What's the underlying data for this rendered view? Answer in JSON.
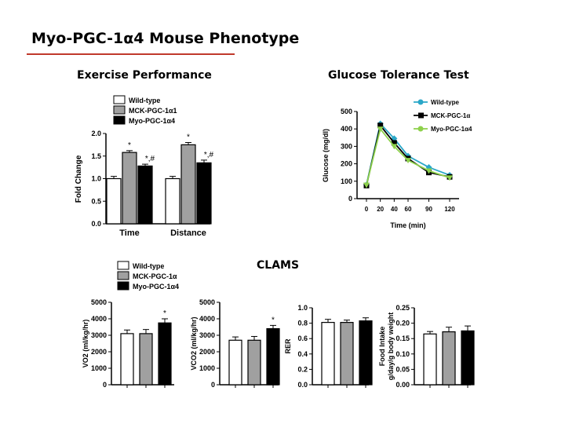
{
  "slide": {
    "title": "Myo-PGC-1α4 Mouse Phenotype"
  },
  "headings": {
    "exercise": "Exercise Performance",
    "gtt": "Glucose Tolerance Test",
    "clams": "CLAMS"
  },
  "colors": {
    "title_rule": "#c0392b",
    "wild_type": "#ffffff",
    "mck": "#a0a0a0",
    "myo": "#000000",
    "gtt_wild_type": "#2aa7c8",
    "gtt_mck": "#000000",
    "gtt_myo": "#8ed14c"
  },
  "chart_data": [
    {
      "id": "exercise",
      "type": "bar",
      "categories": [
        "Time",
        "Distance"
      ],
      "ylabel": "Fold Change",
      "ylim": [
        0,
        2.0
      ],
      "yticks": [
        "0.0",
        "0.5",
        "1.0",
        "1.5",
        "2.0"
      ],
      "legend": [
        "Wild-type",
        "MCK-PGC-1α1",
        "Myo-PGC-1α4"
      ],
      "series": [
        {
          "name": "Wild-type",
          "values": [
            1.0,
            1.0
          ],
          "errors": [
            0.05,
            0.05
          ],
          "labels": [
            "",
            ""
          ]
        },
        {
          "name": "MCK-PGC-1α1",
          "values": [
            1.58,
            1.75
          ],
          "errors": [
            0.04,
            0.05
          ],
          "labels": [
            "*",
            "*"
          ]
        },
        {
          "name": "Myo-PGC-1α4",
          "values": [
            1.28,
            1.35
          ],
          "errors": [
            0.04,
            0.06
          ],
          "labels": [
            "*,#",
            "*,#"
          ]
        }
      ]
    },
    {
      "id": "gtt",
      "type": "line",
      "xlabel": "Time (min)",
      "ylabel": "Glucose (mg/dl)",
      "x": [
        0,
        20,
        40,
        60,
        90,
        120
      ],
      "xlim": [
        0,
        120
      ],
      "ylim": [
        0,
        500
      ],
      "yticks": [
        "0",
        "100",
        "200",
        "300",
        "400",
        "500"
      ],
      "xticks": [
        "0",
        "20",
        "40",
        "60",
        "90",
        "120"
      ],
      "series": [
        {
          "name": "Wild-type",
          "values": [
            80,
            430,
            345,
            245,
            180,
            135
          ]
        },
        {
          "name": "MCK-PGC-1α",
          "values": [
            75,
            420,
            320,
            230,
            150,
            125
          ]
        },
        {
          "name": "Myo-PGC-1α4",
          "values": [
            78,
            400,
            300,
            220,
            160,
            120
          ]
        }
      ]
    },
    {
      "id": "vo2",
      "type": "bar",
      "ylabel": "VO2 (ml/kg/hr)",
      "ylim": [
        0,
        5000
      ],
      "yticks": [
        "0",
        "1000",
        "2000",
        "3000",
        "4000",
        "5000"
      ],
      "legend": [
        "Wild-type",
        "MCK-PGC-1α",
        "Myo-PGC-1α4"
      ],
      "series_names": [
        "Wild-type",
        "MCK-PGC-1α",
        "Myo-PGC-1α4"
      ],
      "values": [
        3100,
        3100,
        3750
      ],
      "errors": [
        220,
        250,
        250
      ],
      "labels": [
        "",
        "",
        "*"
      ]
    },
    {
      "id": "vco2",
      "type": "bar",
      "ylabel": "VCO2 (ml/kg/hr)",
      "ylim": [
        0,
        5000
      ],
      "yticks": [
        "0",
        "1000",
        "2000",
        "3000",
        "4000",
        "5000"
      ],
      "series_names": [
        "Wild-type",
        "MCK-PGC-1α",
        "Myo-PGC-1α4"
      ],
      "values": [
        2700,
        2700,
        3400
      ],
      "errors": [
        200,
        230,
        200
      ],
      "labels": [
        "",
        "",
        "*"
      ]
    },
    {
      "id": "rer",
      "type": "bar",
      "ylabel": "RER",
      "ylim": [
        0,
        1.0
      ],
      "yticks": [
        "0.0",
        "0.2",
        "0.4",
        "0.6",
        "0.8",
        "1.0"
      ],
      "series_names": [
        "Wild-type",
        "MCK-PGC-1α",
        "Myo-PGC-1α4"
      ],
      "values": [
        0.81,
        0.81,
        0.83
      ],
      "errors": [
        0.04,
        0.03,
        0.04
      ],
      "labels": [
        "",
        "",
        ""
      ]
    },
    {
      "id": "food",
      "type": "bar",
      "ylabel": "Food Intake\ng/day/g body weight",
      "ylim": [
        0,
        0.25
      ],
      "yticks": [
        "0.00",
        "0.05",
        "0.10",
        "0.15",
        "0.20",
        "0.25"
      ],
      "series_names": [
        "Wild-type",
        "MCK-PGC-1α",
        "Myo-PGC-1α4"
      ],
      "values": [
        0.165,
        0.172,
        0.175
      ],
      "errors": [
        0.008,
        0.015,
        0.016
      ],
      "labels": [
        "",
        "",
        ""
      ]
    }
  ]
}
